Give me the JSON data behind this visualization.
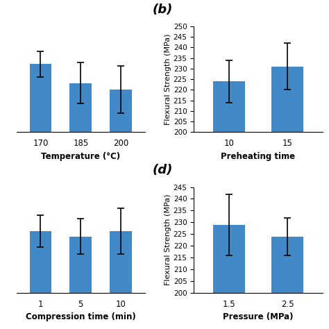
{
  "bar_color": "#4189C7",
  "panels": [
    {
      "label": "",
      "categories": [
        "170",
        "185",
        "200"
      ],
      "values": [
        238,
        226,
        222
      ],
      "errors": [
        8,
        13,
        15
      ],
      "xlabel": "Temperature (°C)",
      "ylabel": "",
      "ylim": [
        195,
        262
      ],
      "yticks": [],
      "show_ylabel": false
    },
    {
      "label": "(b)",
      "categories": [
        "10",
        "15"
      ],
      "values": [
        224,
        231
      ],
      "errors": [
        10,
        11
      ],
      "xlabel": "Preheating time",
      "ylabel": "Flexural Strength (MPa)",
      "ylim": [
        200,
        250
      ],
      "yticks": [
        200,
        205,
        210,
        215,
        220,
        225,
        230,
        235,
        240,
        245,
        250
      ],
      "show_ylabel": true
    },
    {
      "label": "",
      "categories": [
        "1",
        "5",
        "10"
      ],
      "values": [
        230,
        227,
        230
      ],
      "errors": [
        9,
        10,
        13
      ],
      "xlabel": "Compression time (min)",
      "ylabel": "",
      "ylim": [
        195,
        255
      ],
      "yticks": [],
      "show_ylabel": false
    },
    {
      "label": "(d)",
      "categories": [
        "1.5",
        "2.5"
      ],
      "values": [
        229,
        224
      ],
      "errors": [
        13,
        8
      ],
      "xlabel": "Pressure (MPa)",
      "ylabel": "Flexural Strength (MPa)",
      "ylim": [
        200,
        245
      ],
      "yticks": [
        200,
        205,
        210,
        215,
        220,
        225,
        230,
        235,
        240,
        245
      ],
      "show_ylabel": true
    }
  ],
  "fig_width": 4.74,
  "fig_height": 4.74,
  "dpi": 100
}
